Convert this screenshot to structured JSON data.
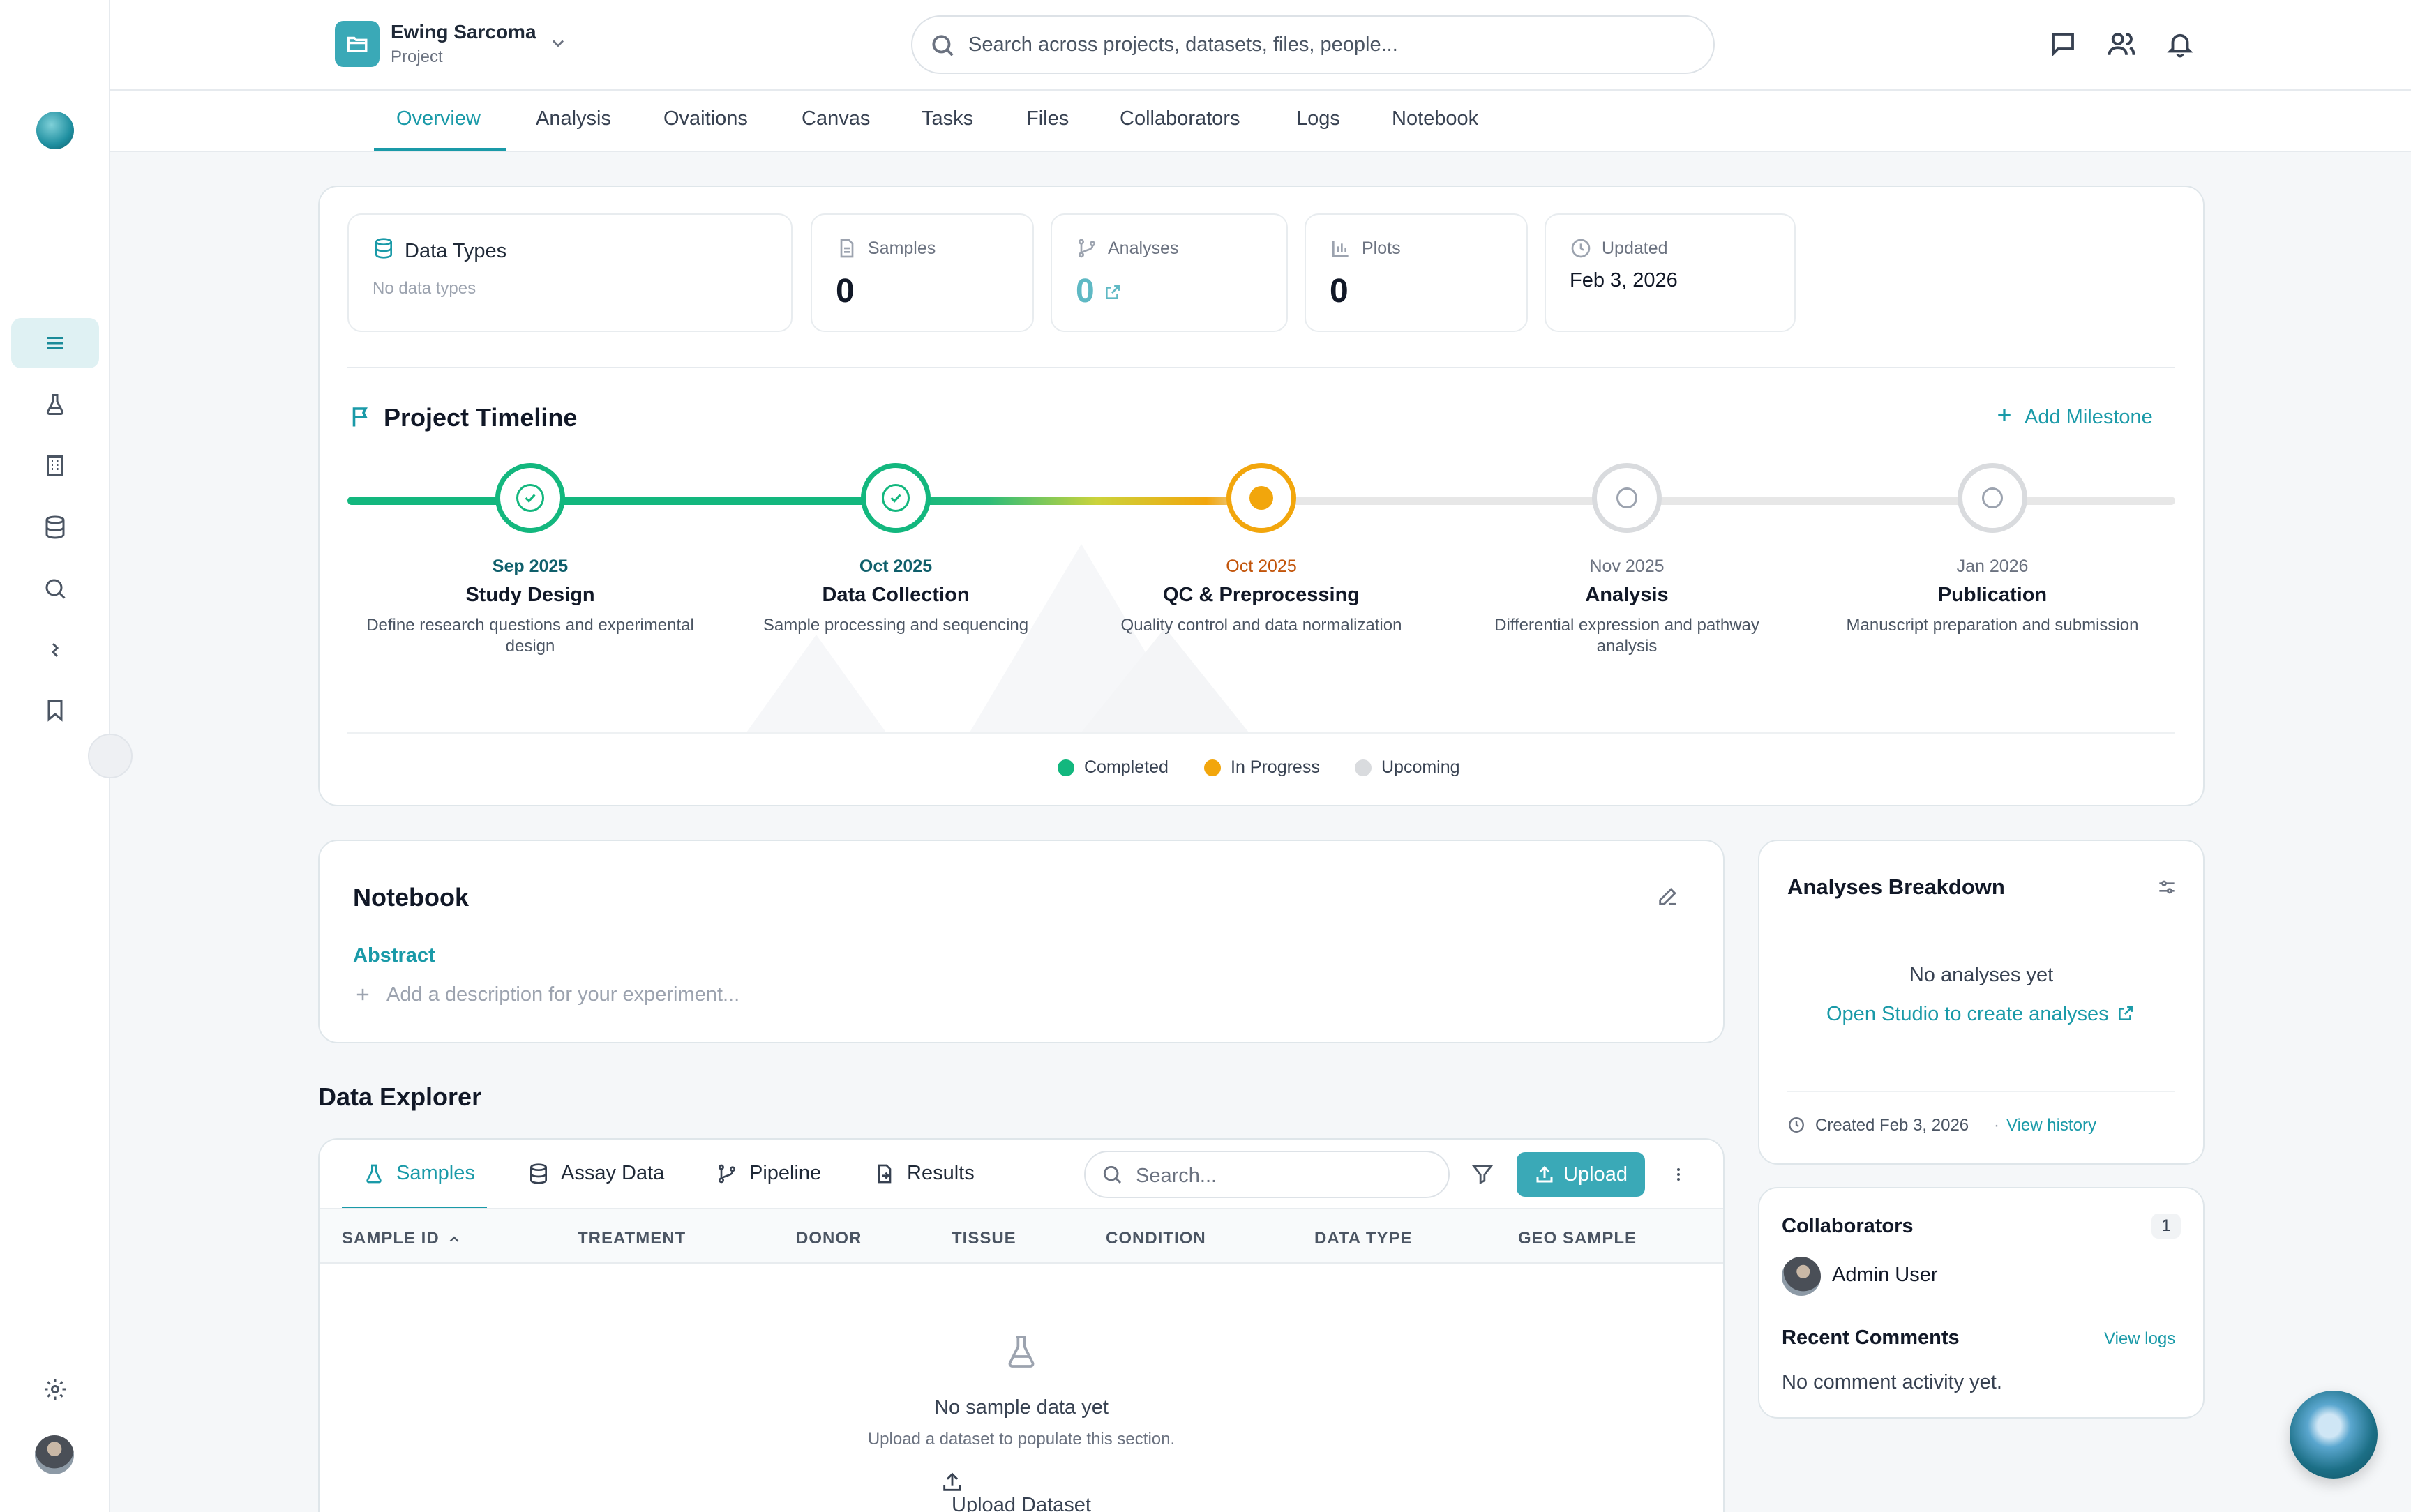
{
  "header": {
    "project_name": "Ewing Sarcoma",
    "project_type": "Project",
    "search_placeholder": "Search across projects, datasets, files, people..."
  },
  "tabs": [
    {
      "label": "Overview",
      "active": true
    },
    {
      "label": "Analysis"
    },
    {
      "label": "Ovaitions"
    },
    {
      "label": "Canvas"
    },
    {
      "label": "Tasks"
    },
    {
      "label": "Files"
    },
    {
      "label": "Collaborators"
    },
    {
      "label": "Logs"
    },
    {
      "label": "Notebook"
    }
  ],
  "stats": {
    "data_types": {
      "label": "Data Types",
      "value": "No data types"
    },
    "samples": {
      "label": "Samples",
      "value": "0"
    },
    "analyses": {
      "label": "Analyses",
      "value": "0"
    },
    "plots": {
      "label": "Plots",
      "value": "0"
    },
    "updated": {
      "label": "Updated",
      "value": "Feb 3, 2026"
    }
  },
  "timeline": {
    "title": "Project Timeline",
    "add_label": "Add Milestone",
    "milestones": [
      {
        "date": "Sep 2025",
        "title": "Study Design",
        "desc": "Define research questions and experimental design",
        "status": "completed"
      },
      {
        "date": "Oct 2025",
        "title": "Data Collection",
        "desc": "Sample processing and sequencing",
        "status": "completed"
      },
      {
        "date": "Oct 2025",
        "title": "QC & Preprocessing",
        "desc": "Quality control and data normalization",
        "status": "in-progress"
      },
      {
        "date": "Nov 2025",
        "title": "Analysis",
        "desc": "Differential expression and pathway analysis",
        "status": "upcoming"
      },
      {
        "date": "Jan 2026",
        "title": "Publication",
        "desc": "Manuscript preparation and submission",
        "status": "upcoming"
      }
    ],
    "legend": [
      {
        "label": "Completed",
        "color": "#13b77e"
      },
      {
        "label": "In Progress",
        "color": "#f2a60c"
      },
      {
        "label": "Upcoming",
        "color": "#d9dbde"
      }
    ]
  },
  "notebook": {
    "title": "Notebook",
    "section": "Abstract",
    "placeholder": "Add a description for your experiment..."
  },
  "analyses_breakdown": {
    "title": "Analyses Breakdown",
    "empty": "No analyses yet",
    "cta": "Open Studio to create analyses",
    "created": "Created Feb 3, 2026",
    "history": "View history"
  },
  "collaborators": {
    "title": "Collaborators",
    "count": "1",
    "user": "Admin User",
    "comments_title": "Recent Comments",
    "view_logs": "View logs",
    "empty": "No comment activity yet."
  },
  "explorer": {
    "title": "Data Explorer",
    "tabs": [
      "Samples",
      "Assay Data",
      "Pipeline",
      "Results"
    ],
    "search_placeholder": "Search...",
    "upload": "Upload",
    "columns": [
      "SAMPLE ID",
      "TREATMENT",
      "DONOR",
      "TISSUE",
      "CONDITION",
      "DATA TYPE",
      "GEO SAMPLE"
    ],
    "empty_title": "No sample data yet",
    "empty_sub": "Upload a dataset to populate this section.",
    "upload_dataset": "Upload Dataset"
  },
  "colors": {
    "accent": "#1a9aa8",
    "completed": "#13b77e",
    "in_progress": "#f2a60c",
    "upcoming": "#d9dbde"
  }
}
